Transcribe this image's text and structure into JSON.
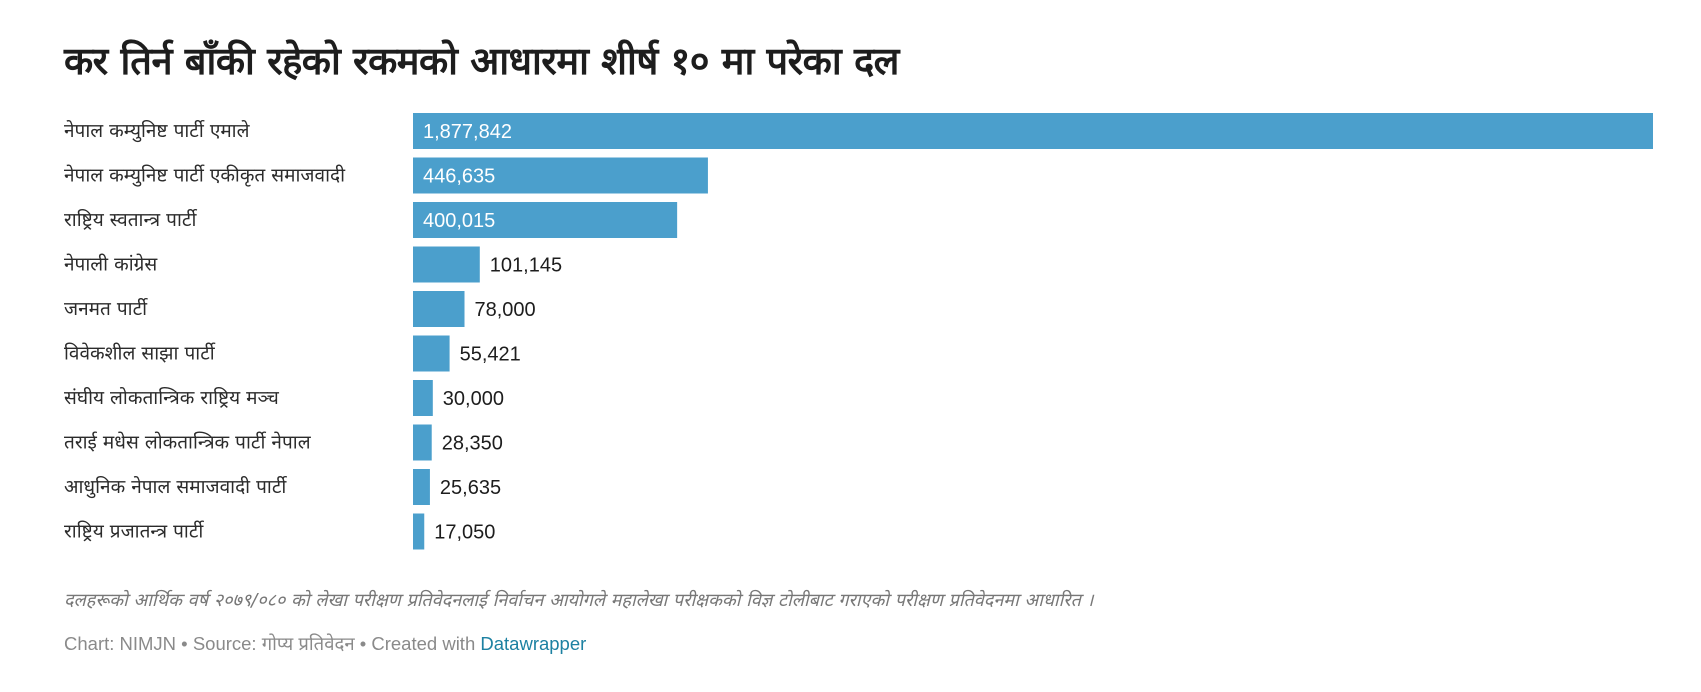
{
  "chart_data": {
    "type": "bar",
    "orientation": "horizontal",
    "title": "कर तिर्न बाँकी रहेको रकमको आधारमा शीर्ष १० मा परेका दल",
    "categories": [
      "नेपाल कम्युनिष्ट पार्टी एमाले",
      "नेपाल कम्युनिष्ट पार्टी एकीकृत समाजवादी",
      "राष्ट्रिय स्वतान्त्र पार्टी",
      "नेपाली कांग्रेस",
      "जनमत पार्टी",
      "विवेकशील साझा पार्टी",
      "संघीय लोकतान्त्रिक राष्ट्रिय मञ्च",
      "तराई मधेस लोकतान्त्रिक पार्टी नेपाल",
      "आधुनिक नेपाल समाजवादी पार्टी",
      "राष्ट्रिय प्रजातन्त्र पार्टी"
    ],
    "values": [
      1877842,
      446635,
      400015,
      101145,
      78000,
      55421,
      30000,
      28350,
      25635,
      17050
    ],
    "value_labels": [
      "1,877,842",
      "446,635",
      "400,015",
      "101,145",
      "78,000",
      "55,421",
      "30,000",
      "28,350",
      "25,635",
      "17,050"
    ],
    "xlim": [
      0,
      1877842
    ],
    "bar_color": "#4b9fcc",
    "label_inside_color": "#ffffff",
    "label_outside_color": "#1d1d1d",
    "grid": false,
    "xlabel": "",
    "ylabel": ""
  },
  "notes": "दलहरूको आर्थिक वर्ष २०७९/०८० को लेखा परीक्षण प्रतिवेदनलाई निर्वाचन आयोगले महालेखा परीक्षकको विज्ञ टोलीबाट गराएको परीक्षण प्रतिवेदनमा आधारित ।",
  "footer": {
    "chart_by": "Chart: NIMJN",
    "separator": " • ",
    "source_label": "Source: ",
    "source": "गोप्य प्रतिवेदन",
    "created_with": "Created with ",
    "tool": "Datawrapper",
    "link_color": "#1d81a2"
  }
}
